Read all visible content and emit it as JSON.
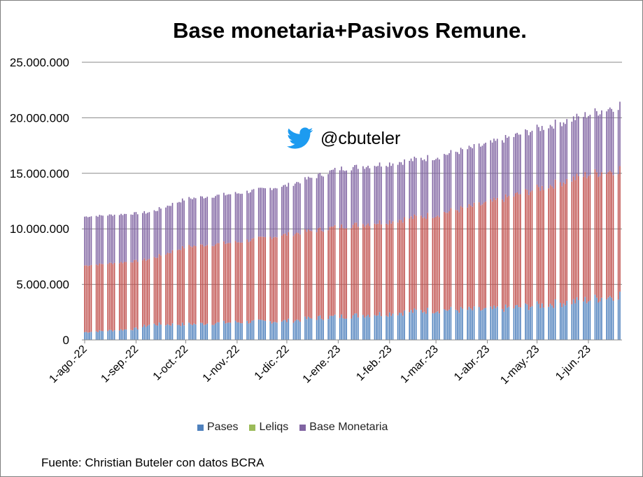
{
  "chart_data": {
    "type": "bar",
    "stacked": true,
    "title": "Base monetaria+Pasivos Remune.",
    "xlabel": "",
    "ylabel": "",
    "ylim": [
      0,
      25000000
    ],
    "yticks": [
      "0",
      "5.000.000",
      "10.000.000",
      "15.000.000",
      "20.000.000",
      "25.000.000"
    ],
    "ytick_values": [
      0,
      5000000,
      10000000,
      15000000,
      20000000,
      25000000
    ],
    "xtick_labels": [
      "1-ago.-22",
      "1-sep.-22",
      "1-oct.-22",
      "1-nov.-22",
      "1-dic.-22",
      "1-ene.-23",
      "1-feb.-23",
      "1-mar.-23",
      "1-abr.-23",
      "1-may.-23",
      "1-jun.-23"
    ],
    "grid": true,
    "legend_position": "bottom",
    "x_start": "2022-08-01",
    "x_end": "2023-06-20",
    "series": [
      {
        "name": "Pases",
        "color": "#4f81bd"
      },
      {
        "name": "Leliqs",
        "color": "#c0504d"
      },
      {
        "name": "Base Monetaria",
        "color": "#8064a2"
      }
    ],
    "anchors": [
      {
        "date": "2022-08-01",
        "pases": 700000,
        "leliqs": 6000000,
        "base": 4400000
      },
      {
        "date": "2022-09-01",
        "pases": 1000000,
        "leliqs": 6100000,
        "base": 4300000
      },
      {
        "date": "2022-09-10",
        "pases": 1400000,
        "leliqs": 5900000,
        "base": 4200000
      },
      {
        "date": "2022-10-01",
        "pases": 1400000,
        "leliqs": 7000000,
        "base": 4300000
      },
      {
        "date": "2022-11-01",
        "pases": 1600000,
        "leliqs": 7200000,
        "base": 4400000
      },
      {
        "date": "2022-12-01",
        "pases": 1700000,
        "leliqs": 7800000,
        "base": 4400000
      },
      {
        "date": "2022-12-20",
        "pases": 2000000,
        "leliqs": 7900000,
        "base": 4900000
      },
      {
        "date": "2023-01-01",
        "pases": 2100000,
        "leliqs": 8100000,
        "base": 5200000
      },
      {
        "date": "2023-02-01",
        "pases": 2400000,
        "leliqs": 8300000,
        "base": 5200000
      },
      {
        "date": "2023-03-01",
        "pases": 2700000,
        "leliqs": 8600000,
        "base": 5200000
      },
      {
        "date": "2023-04-01",
        "pases": 2700000,
        "leliqs": 9600000,
        "base": 5300000
      },
      {
        "date": "2023-05-01",
        "pases": 3100000,
        "leliqs": 10500000,
        "base": 5400000
      },
      {
        "date": "2023-06-01",
        "pases": 3600000,
        "leliqs": 11300000,
        "base": 5400000
      },
      {
        "date": "2023-06-20",
        "pases": 4100000,
        "leliqs": 11300000,
        "base": 5800000
      }
    ]
  },
  "overlay": {
    "twitter_icon": "twitter-bird-icon",
    "handle": "@cbuteler"
  },
  "source": "Fuente: Christian Buteler con datos BCRA"
}
